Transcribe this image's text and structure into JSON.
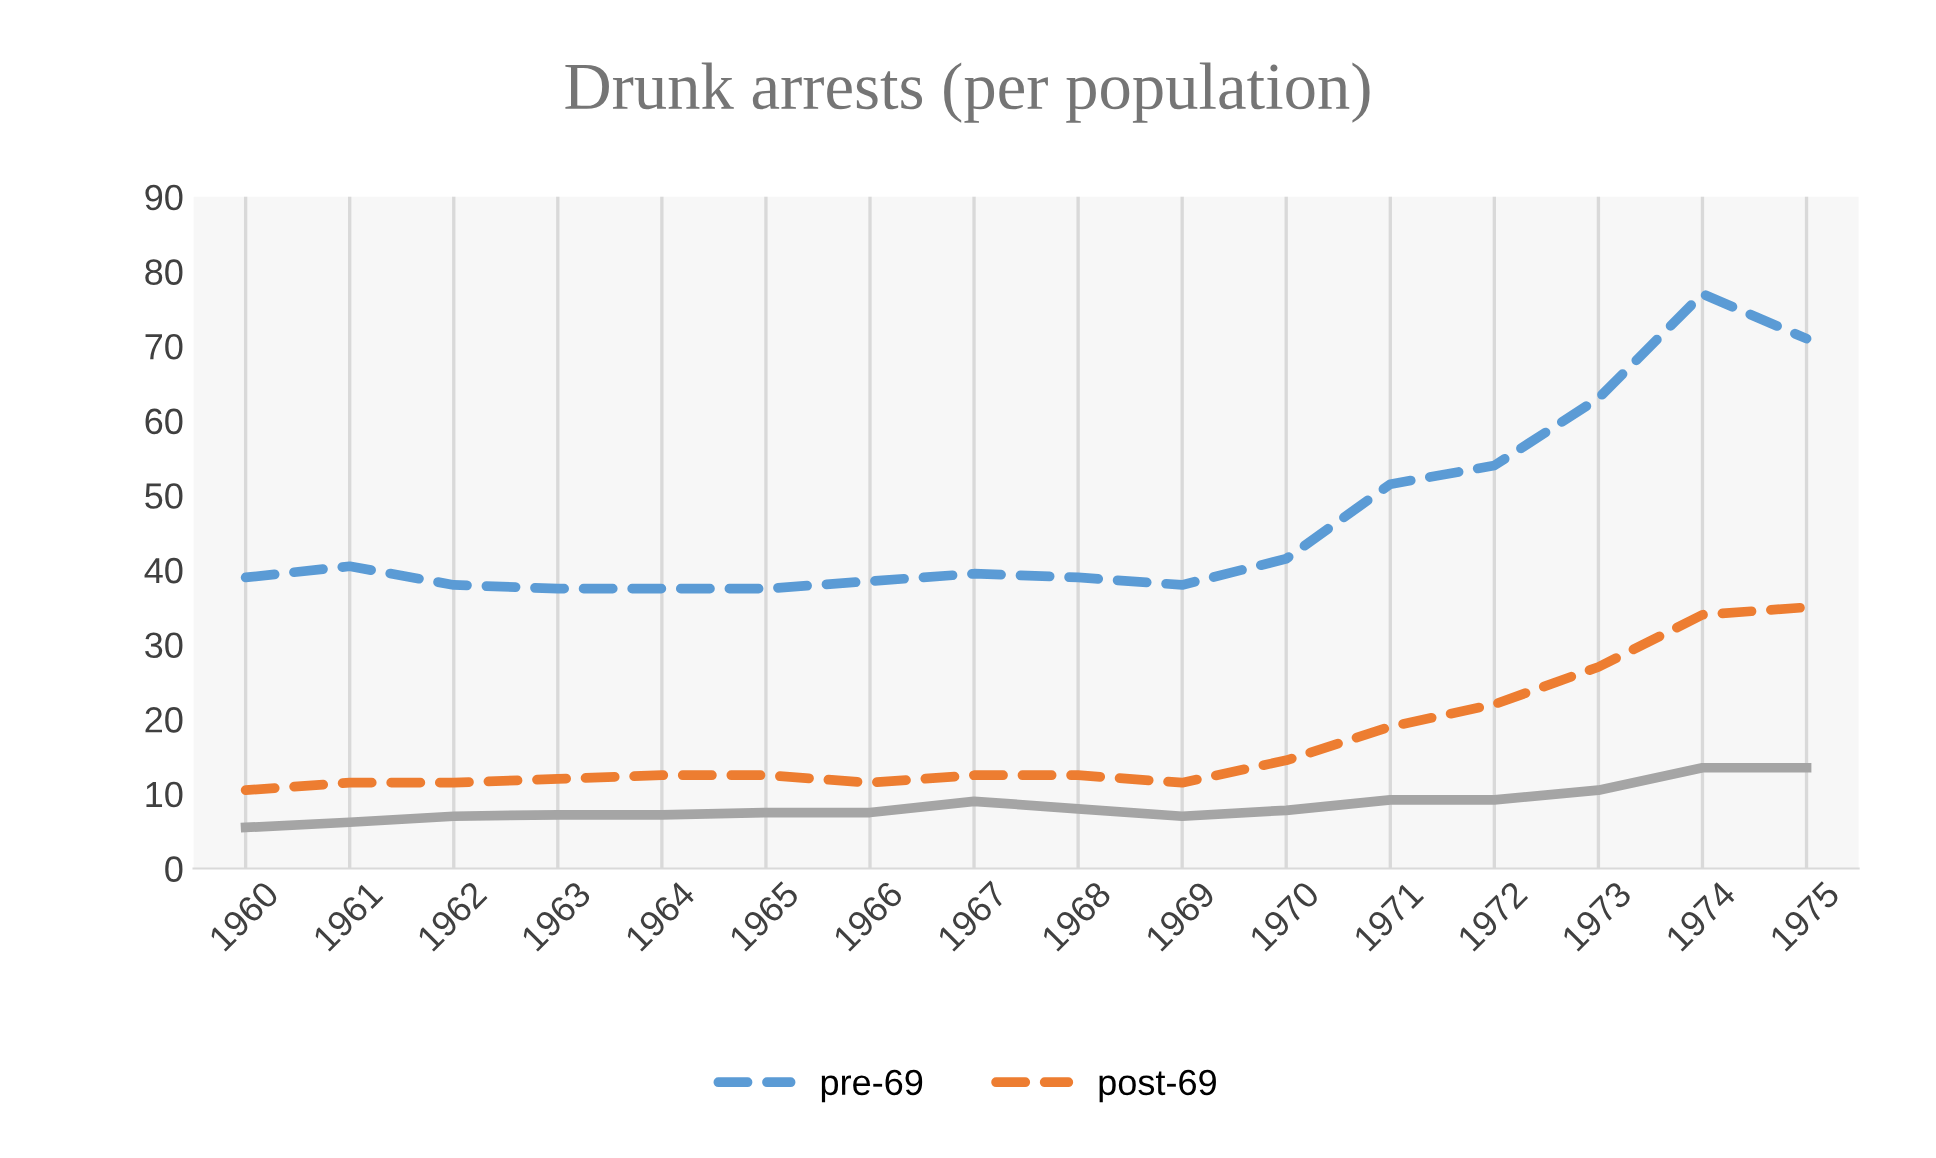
{
  "chart_data": {
    "type": "line",
    "title": "Drunk arrests (per population)",
    "categories": [
      "1960",
      "1961",
      "1962",
      "1963",
      "1964",
      "1965",
      "1966",
      "1967",
      "1968",
      "1969",
      "1970",
      "1971",
      "1972",
      "1973",
      "1974",
      "1975"
    ],
    "series": [
      {
        "name": "pre-69",
        "color": "#5b9bd5",
        "line_style": "dashed",
        "values": [
          39,
          40.5,
          38,
          37.5,
          37.5,
          37.5,
          38.5,
          39.5,
          39,
          38,
          41.5,
          51.5,
          54,
          63,
          77,
          71
        ]
      },
      {
        "name": "post-69",
        "color": "#ed7d31",
        "line_style": "dashed",
        "values": [
          10.5,
          11.5,
          11.5,
          12,
          12.5,
          12.5,
          11.5,
          12.5,
          12.5,
          11.5,
          14.5,
          19,
          22,
          27,
          34,
          35
        ]
      },
      {
        "color": "#a5a5a5",
        "line_style": "solid",
        "values": [
          5.5,
          6.2,
          7,
          7.2,
          7.2,
          7.5,
          7.5,
          9,
          8,
          7,
          7.8,
          9.2,
          9.2,
          10.5,
          13.5,
          13.5
        ]
      }
    ],
    "ylim": [
      0,
      90
    ],
    "yticks": [
      0,
      10,
      20,
      30,
      40,
      50,
      60,
      70,
      80,
      90
    ],
    "grid": "x",
    "legend": "bottom",
    "marker": "none"
  }
}
